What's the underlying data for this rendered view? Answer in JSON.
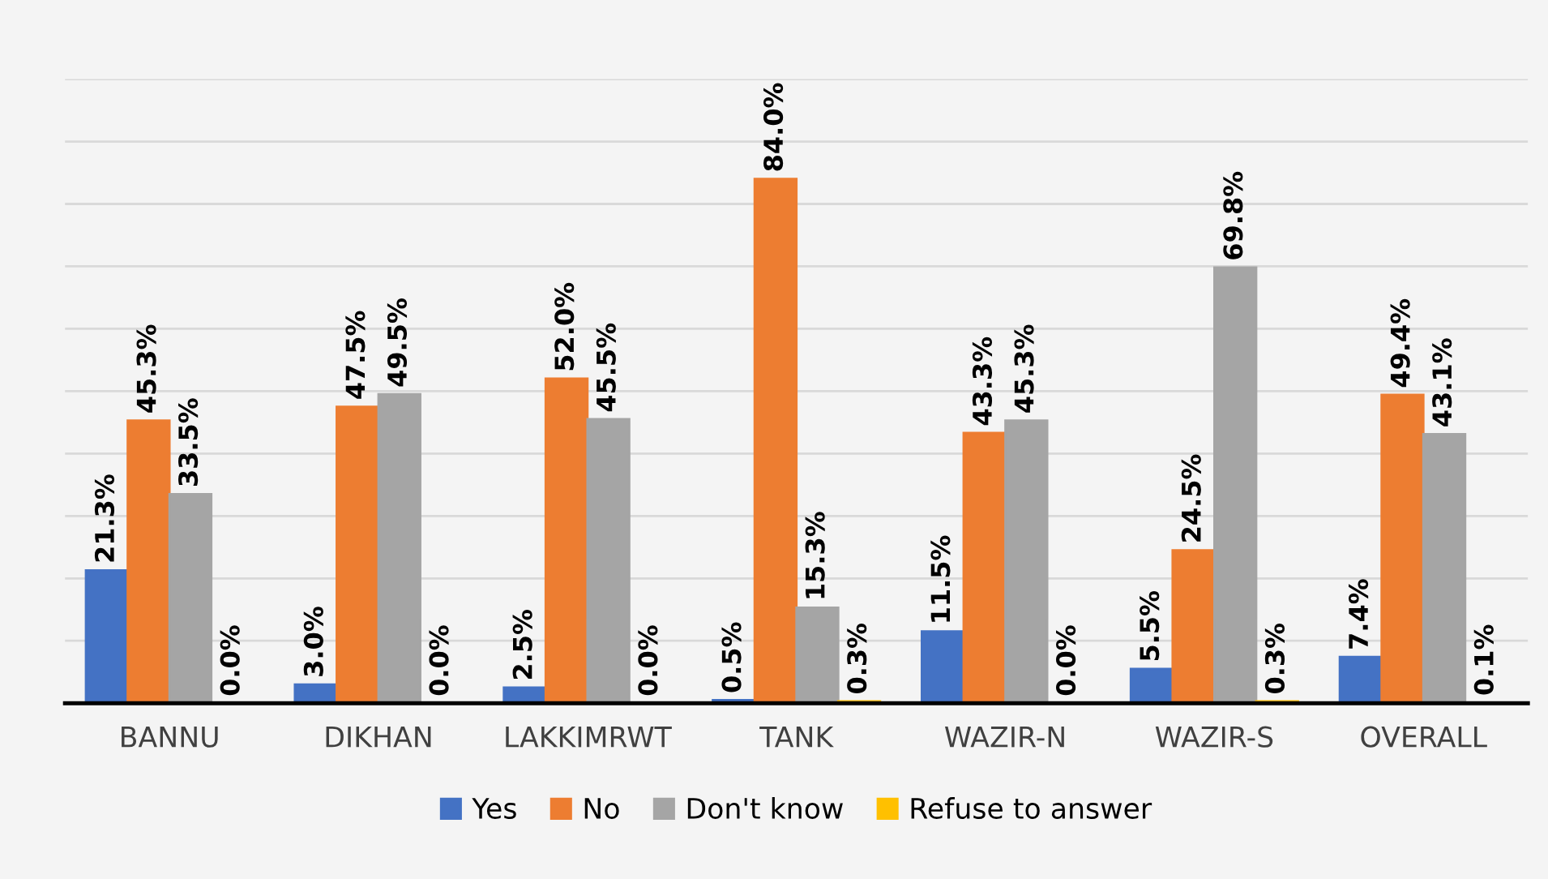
{
  "chart_data": {
    "type": "bar",
    "categories": [
      "BANNU",
      "DIKHAN",
      "LAKKIMRWT",
      "TANK",
      "WAZIR-N",
      "WAZIR-S",
      "OVERALL"
    ],
    "series": [
      {
        "name": "Yes",
        "color": "#4472c4",
        "values": [
          21.3,
          3.0,
          2.5,
          0.5,
          11.5,
          5.5,
          7.4
        ],
        "value_labels": [
          "21.3%",
          "3.0%",
          "2.5%",
          "0.5%",
          "11.5%",
          "5.5%",
          "7.4%"
        ]
      },
      {
        "name": "No",
        "color": "#ed7d31",
        "values": [
          45.3,
          47.5,
          52.0,
          84.0,
          43.3,
          24.5,
          49.4
        ],
        "value_labels": [
          "45.3%",
          "47.5%",
          "52.0%",
          "84.0%",
          "43.3%",
          "24.5%",
          "49.4%"
        ]
      },
      {
        "name": "Don't know",
        "color": "#a5a5a5",
        "values": [
          33.5,
          49.5,
          45.5,
          15.3,
          45.3,
          69.8,
          43.1
        ],
        "value_labels": [
          "33.5%",
          "49.5%",
          "45.5%",
          "15.3%",
          "45.3%",
          "69.8%",
          "43.1%"
        ]
      },
      {
        "name": "Refuse to answer",
        "color": "#ffc000",
        "values": [
          0.0,
          0.0,
          0.0,
          0.3,
          0.0,
          0.3,
          0.1
        ],
        "value_labels": [
          "0.0%",
          "0.0%",
          "0.0%",
          "0.3%",
          "0.0%",
          "0.3%",
          "0.1%"
        ]
      }
    ],
    "ylim": [
      0,
      100
    ],
    "yticks": [
      {
        "value": 0,
        "label": null
      },
      {
        "value": 10,
        "label": null
      },
      {
        "value": 20,
        "label": null
      },
      {
        "value": 30,
        "label": null
      },
      {
        "value": 40,
        "label": null
      },
      {
        "value": 50,
        "label": null
      },
      {
        "value": 60,
        "label": null
      },
      {
        "value": 70,
        "label": null
      },
      {
        "value": 80,
        "label": null
      },
      {
        "value": 90,
        "label": null
      },
      {
        "value": 100,
        "label": null
      }
    ],
    "tick_labels": "x",
    "grid": "y",
    "legend": "bottom"
  }
}
